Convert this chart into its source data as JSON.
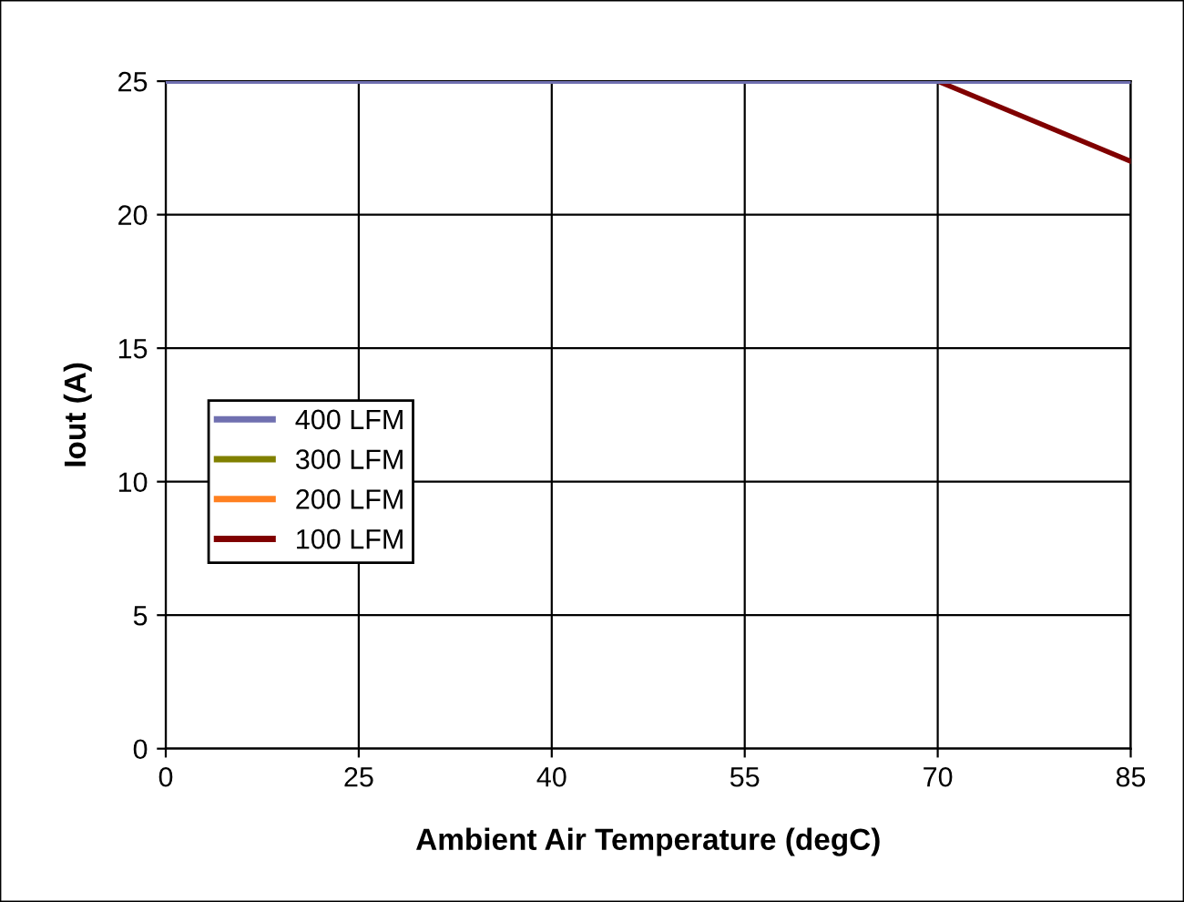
{
  "chart_data": {
    "type": "line",
    "xlabel": "Ambient Air Temperature (degC)",
    "ylabel": "Iout (A)",
    "categories": [
      "0",
      "25",
      "40",
      "55",
      "70",
      "85"
    ],
    "series": [
      {
        "name": "400 LFM",
        "color": "#7070b0",
        "values": [
          25,
          25,
          25,
          25,
          25,
          25
        ]
      },
      {
        "name": "300 LFM",
        "color": "#808000",
        "values": [
          null,
          null,
          null,
          null,
          null,
          null
        ]
      },
      {
        "name": "200 LFM",
        "color": "#ff8020",
        "values": [
          null,
          null,
          null,
          null,
          null,
          null
        ]
      },
      {
        "name": "100 LFM",
        "color": "#800000",
        "values": [
          null,
          null,
          null,
          null,
          25,
          22
        ]
      }
    ],
    "ylim": [
      0,
      25
    ],
    "yticks": [
      0,
      5,
      10,
      15,
      20,
      25
    ],
    "grid": true,
    "legend": "left",
    "marker": "none",
    "line_style": "solid"
  }
}
